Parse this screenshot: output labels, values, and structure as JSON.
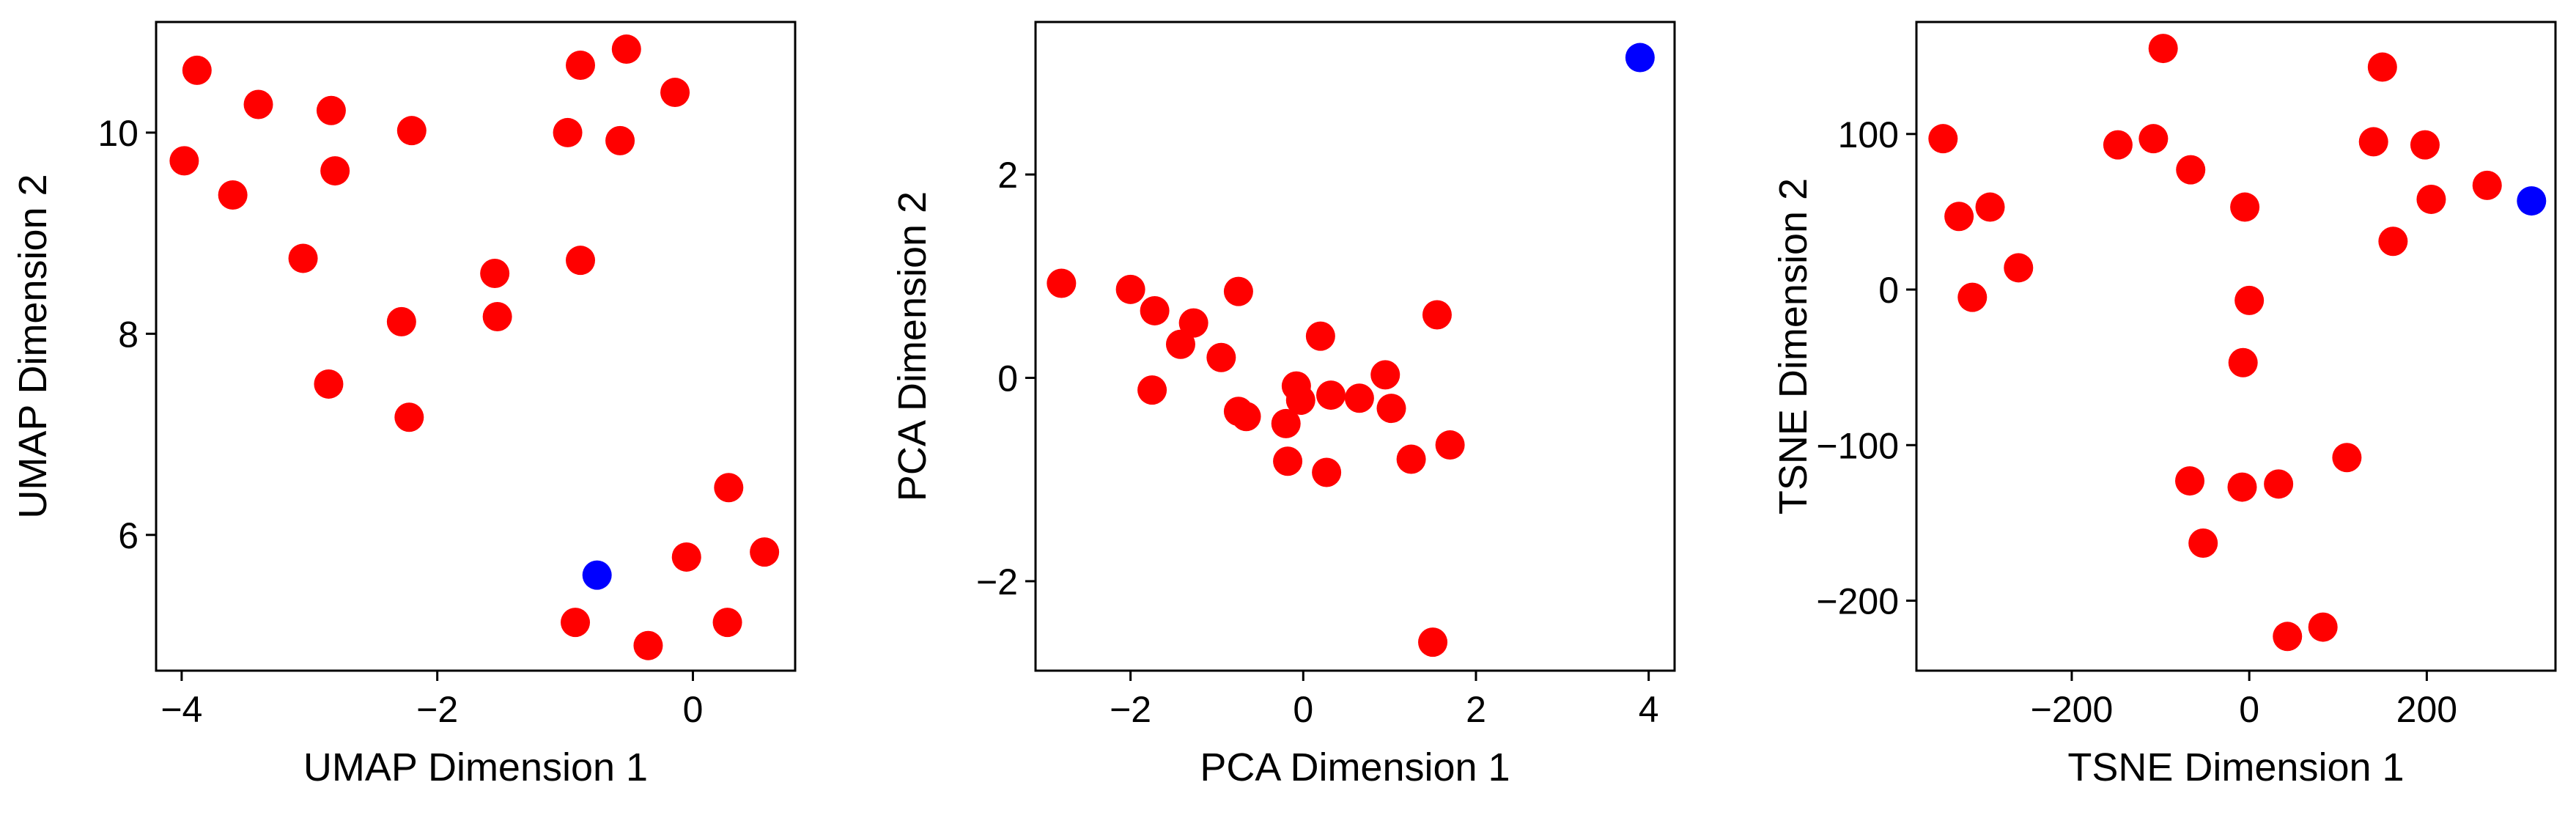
{
  "colors": {
    "default_point": "#ff0000",
    "highlight_point": "#0000ff"
  },
  "chart_data": [
    {
      "type": "scatter",
      "xlabel": "UMAP Dimension 1",
      "ylabel": "UMAP Dimension 2",
      "xlim": [
        -4.2,
        0.8
      ],
      "ylim": [
        4.65,
        11.1
      ],
      "xticks": [
        -4,
        -2,
        0
      ],
      "yticks": [
        6,
        8,
        10
      ],
      "grid": false,
      "points": [
        {
          "x": -3.88,
          "y": 10.62,
          "group": "default"
        },
        {
          "x": -3.98,
          "y": 9.72,
          "group": "default"
        },
        {
          "x": -3.4,
          "y": 10.28,
          "group": "default"
        },
        {
          "x": -3.6,
          "y": 9.38,
          "group": "default"
        },
        {
          "x": -2.83,
          "y": 10.22,
          "group": "default"
        },
        {
          "x": -2.8,
          "y": 9.62,
          "group": "default"
        },
        {
          "x": -2.2,
          "y": 10.02,
          "group": "default"
        },
        {
          "x": -3.05,
          "y": 8.75,
          "group": "default"
        },
        {
          "x": -2.28,
          "y": 8.12,
          "group": "default"
        },
        {
          "x": -2.85,
          "y": 7.5,
          "group": "default"
        },
        {
          "x": -2.22,
          "y": 7.17,
          "group": "default"
        },
        {
          "x": -1.55,
          "y": 8.6,
          "group": "default"
        },
        {
          "x": -1.53,
          "y": 8.17,
          "group": "default"
        },
        {
          "x": -0.88,
          "y": 10.67,
          "group": "default"
        },
        {
          "x": -0.98,
          "y": 10.0,
          "group": "default"
        },
        {
          "x": -0.52,
          "y": 10.83,
          "group": "default"
        },
        {
          "x": -0.57,
          "y": 9.92,
          "group": "default"
        },
        {
          "x": -0.14,
          "y": 10.4,
          "group": "default"
        },
        {
          "x": -0.88,
          "y": 8.73,
          "group": "default"
        },
        {
          "x": -0.75,
          "y": 5.6,
          "group": "highlight"
        },
        {
          "x": 0.28,
          "y": 6.47,
          "group": "default"
        },
        {
          "x": -0.05,
          "y": 5.78,
          "group": "default"
        },
        {
          "x": 0.56,
          "y": 5.83,
          "group": "default"
        },
        {
          "x": -0.92,
          "y": 5.13,
          "group": "default"
        },
        {
          "x": -0.35,
          "y": 4.9,
          "group": "default"
        },
        {
          "x": 0.27,
          "y": 5.13,
          "group": "default"
        }
      ]
    },
    {
      "type": "scatter",
      "xlabel": "PCA Dimension 1",
      "ylabel": "PCA Dimension 2",
      "xlim": [
        -3.1,
        4.3
      ],
      "ylim": [
        -2.88,
        3.5
      ],
      "xticks": [
        -2,
        0,
        2,
        4
      ],
      "yticks": [
        -2,
        0,
        2
      ],
      "grid": false,
      "points": [
        {
          "x": -2.8,
          "y": 0.93,
          "group": "default"
        },
        {
          "x": -2.0,
          "y": 0.87,
          "group": "default"
        },
        {
          "x": -1.72,
          "y": 0.66,
          "group": "default"
        },
        {
          "x": -1.27,
          "y": 0.54,
          "group": "default"
        },
        {
          "x": -1.42,
          "y": 0.33,
          "group": "default"
        },
        {
          "x": -0.75,
          "y": 0.85,
          "group": "default"
        },
        {
          "x": -0.95,
          "y": 0.2,
          "group": "default"
        },
        {
          "x": -1.75,
          "y": -0.12,
          "group": "default"
        },
        {
          "x": -0.75,
          "y": -0.33,
          "group": "default"
        },
        {
          "x": -0.66,
          "y": -0.38,
          "group": "default"
        },
        {
          "x": -0.2,
          "y": -0.45,
          "group": "default"
        },
        {
          "x": -0.08,
          "y": -0.08,
          "group": "default"
        },
        {
          "x": -0.03,
          "y": -0.22,
          "group": "default"
        },
        {
          "x": 0.2,
          "y": 0.41,
          "group": "default"
        },
        {
          "x": 0.32,
          "y": -0.17,
          "group": "default"
        },
        {
          "x": 0.65,
          "y": -0.2,
          "group": "default"
        },
        {
          "x": 0.95,
          "y": 0.03,
          "group": "default"
        },
        {
          "x": 1.02,
          "y": -0.3,
          "group": "default"
        },
        {
          "x": 1.55,
          "y": 0.62,
          "group": "default"
        },
        {
          "x": -0.18,
          "y": -0.82,
          "group": "default"
        },
        {
          "x": 0.27,
          "y": -0.93,
          "group": "default"
        },
        {
          "x": 1.25,
          "y": -0.8,
          "group": "default"
        },
        {
          "x": 1.7,
          "y": -0.66,
          "group": "default"
        },
        {
          "x": 1.5,
          "y": -2.6,
          "group": "default"
        },
        {
          "x": 3.9,
          "y": 3.15,
          "group": "highlight"
        }
      ]
    },
    {
      "type": "scatter",
      "xlabel": "TSNE Dimension 1",
      "ylabel": "TSNE Dimension 2",
      "xlim": [
        -375,
        345
      ],
      "ylim": [
        -245,
        172
      ],
      "xticks": [
        -200,
        0,
        200
      ],
      "yticks": [
        -200,
        -100,
        0,
        100
      ],
      "grid": false,
      "points": [
        {
          "x": -345,
          "y": 97,
          "group": "default"
        },
        {
          "x": -327,
          "y": 47,
          "group": "default"
        },
        {
          "x": -292,
          "y": 53,
          "group": "default"
        },
        {
          "x": -312,
          "y": -5,
          "group": "default"
        },
        {
          "x": -260,
          "y": 14,
          "group": "default"
        },
        {
          "x": -148,
          "y": 93,
          "group": "default"
        },
        {
          "x": -108,
          "y": 97,
          "group": "default"
        },
        {
          "x": -97,
          "y": 155,
          "group": "default"
        },
        {
          "x": -66,
          "y": 77,
          "group": "default"
        },
        {
          "x": -5,
          "y": 53,
          "group": "default"
        },
        {
          "x": 0,
          "y": -7,
          "group": "default"
        },
        {
          "x": -7,
          "y": -47,
          "group": "default"
        },
        {
          "x": -67,
          "y": -123,
          "group": "default"
        },
        {
          "x": -52,
          "y": -163,
          "group": "default"
        },
        {
          "x": -8,
          "y": -127,
          "group": "default"
        },
        {
          "x": 33,
          "y": -125,
          "group": "default"
        },
        {
          "x": 110,
          "y": -108,
          "group": "default"
        },
        {
          "x": 43,
          "y": -223,
          "group": "default"
        },
        {
          "x": 83,
          "y": -217,
          "group": "default"
        },
        {
          "x": 150,
          "y": 143,
          "group": "default"
        },
        {
          "x": 140,
          "y": 95,
          "group": "default"
        },
        {
          "x": 198,
          "y": 93,
          "group": "default"
        },
        {
          "x": 205,
          "y": 58,
          "group": "default"
        },
        {
          "x": 162,
          "y": 31,
          "group": "default"
        },
        {
          "x": 268,
          "y": 67,
          "group": "default"
        },
        {
          "x": 318,
          "y": 57,
          "group": "highlight"
        }
      ]
    }
  ]
}
